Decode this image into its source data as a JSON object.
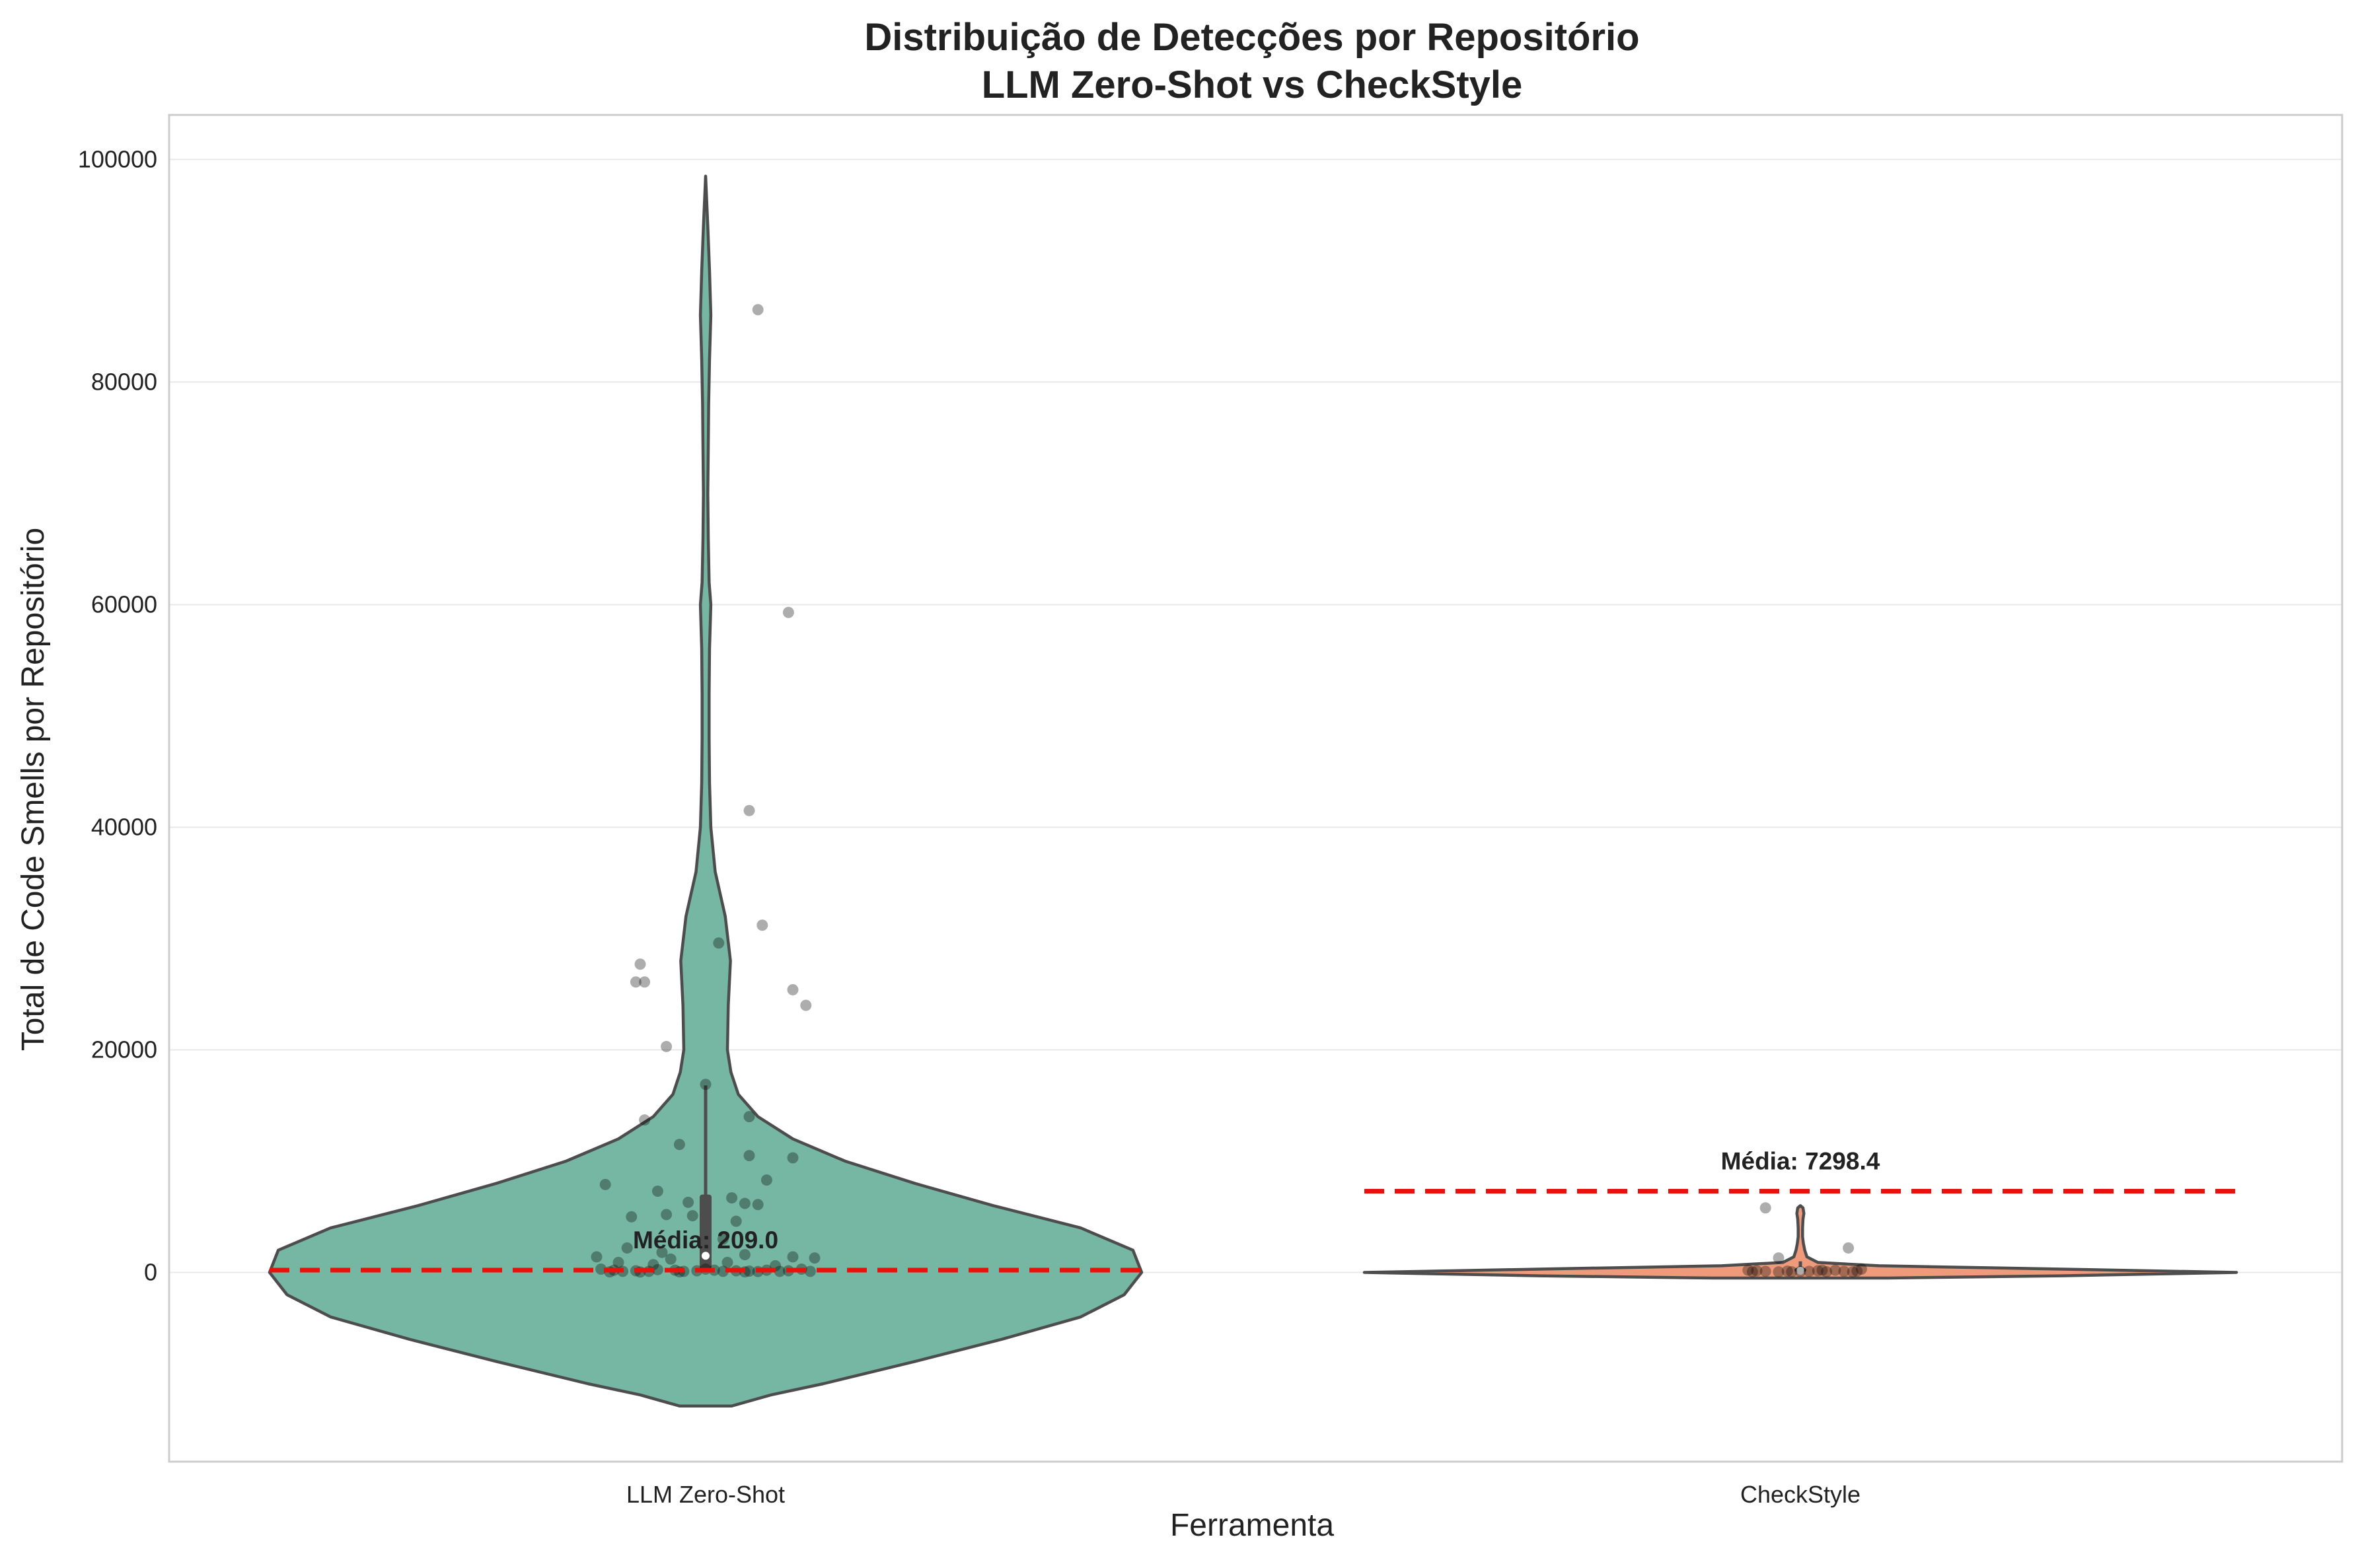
{
  "chart_data": {
    "type": "violin",
    "title_lines": [
      "Distribuição de Detecções por Repositório",
      "LLM Zero-Shot vs CheckStyle"
    ],
    "xlabel": "Ferramenta",
    "ylabel": "Total de Code Smells por Repositório",
    "categories": [
      "LLM Zero-Shot",
      "CheckStyle"
    ],
    "ylim": [
      -17000,
      104000
    ],
    "yticks": [
      0,
      20000,
      40000,
      60000,
      80000,
      100000
    ],
    "grid": true,
    "legend": "none",
    "colors": {
      "LLM Zero-Shot": "#76b7a3",
      "CheckStyle": "#ef9b7b",
      "outline": "#4d4d4d",
      "mean_line": "#e8120c",
      "points": "#000000",
      "grid": "#e8e8e8",
      "frame": "#cccccc"
    },
    "series": [
      {
        "category": "LLM Zero-Shot",
        "mean_label": "Média: 209.0",
        "mean": 209.0,
        "violin_extent": [
          -12000,
          98500
        ],
        "violin_profile": [
          [
            -12000,
            0.06
          ],
          [
            -11000,
            0.15
          ],
          [
            -10000,
            0.27
          ],
          [
            -8000,
            0.48
          ],
          [
            -6000,
            0.68
          ],
          [
            -4000,
            0.86
          ],
          [
            -2000,
            0.96
          ],
          [
            0,
            1.0
          ],
          [
            2000,
            0.98
          ],
          [
            4000,
            0.86
          ],
          [
            6000,
            0.66
          ],
          [
            8000,
            0.48
          ],
          [
            10000,
            0.32
          ],
          [
            12000,
            0.2
          ],
          [
            14000,
            0.12
          ],
          [
            16000,
            0.075
          ],
          [
            18000,
            0.058
          ],
          [
            20000,
            0.05
          ],
          [
            24000,
            0.052
          ],
          [
            28000,
            0.057
          ],
          [
            32000,
            0.045
          ],
          [
            36000,
            0.022
          ],
          [
            40000,
            0.012
          ],
          [
            44000,
            0.009
          ],
          [
            48000,
            0.008
          ],
          [
            52000,
            0.008
          ],
          [
            56000,
            0.009
          ],
          [
            60000,
            0.012
          ],
          [
            62000,
            0.008
          ],
          [
            66000,
            0.006
          ],
          [
            70000,
            0.005
          ],
          [
            74000,
            0.006
          ],
          [
            78000,
            0.007
          ],
          [
            82000,
            0.009
          ],
          [
            86000,
            0.012
          ],
          [
            90000,
            0.009
          ],
          [
            94000,
            0.005
          ],
          [
            98500,
            0.0
          ]
        ],
        "box": {
          "q1": 300,
          "median": 1500,
          "q3": 7000,
          "whisker_high": 16800
        },
        "points": [
          [
            0.12,
            86500
          ],
          [
            0.19,
            59300
          ],
          [
            0.1,
            41500
          ],
          [
            0.13,
            31200
          ],
          [
            0.03,
            29600
          ],
          [
            -0.15,
            27700
          ],
          [
            -0.16,
            26100
          ],
          [
            -0.14,
            26100
          ],
          [
            0.2,
            25400
          ],
          [
            0.23,
            24000
          ],
          [
            -0.09,
            20300
          ],
          [
            0.0,
            16900
          ],
          [
            0.1,
            14000
          ],
          [
            -0.14,
            13700
          ],
          [
            0.1,
            10500
          ],
          [
            0.2,
            10300
          ],
          [
            -0.06,
            11500
          ],
          [
            0.14,
            8300
          ],
          [
            -0.23,
            7900
          ],
          [
            -0.11,
            7300
          ],
          [
            0.06,
            6700
          ],
          [
            0.09,
            6200
          ],
          [
            -0.04,
            6300
          ],
          [
            0.12,
            6100
          ],
          [
            -0.03,
            5100
          ],
          [
            0.07,
            4600
          ],
          [
            -0.17,
            5000
          ],
          [
            -0.09,
            5200
          ],
          [
            0.04,
            3000
          ],
          [
            -0.18,
            2200
          ],
          [
            -0.1,
            1800
          ],
          [
            0.09,
            1600
          ],
          [
            -0.08,
            1200
          ],
          [
            0.2,
            1400
          ],
          [
            0.25,
            1300
          ],
          [
            -0.25,
            1400
          ],
          [
            -0.2,
            900
          ],
          [
            0.05,
            900
          ],
          [
            -0.12,
            700
          ],
          [
            0.16,
            600
          ],
          [
            -0.24,
            300
          ],
          [
            -0.21,
            200
          ],
          [
            -0.19,
            100
          ],
          [
            -0.16,
            150
          ],
          [
            -0.13,
            100
          ],
          [
            -0.11,
            250
          ],
          [
            -0.07,
            200
          ],
          [
            -0.05,
            100
          ],
          [
            -0.02,
            150
          ],
          [
            0.0,
            300
          ],
          [
            0.02,
            200
          ],
          [
            0.04,
            100
          ],
          [
            0.07,
            150
          ],
          [
            0.1,
            120
          ],
          [
            0.12,
            80
          ],
          [
            0.14,
            200
          ],
          [
            0.17,
            100
          ],
          [
            0.19,
            150
          ],
          [
            0.22,
            300
          ],
          [
            -0.22,
            50
          ],
          [
            0.24,
            100
          ],
          [
            -0.06,
            50
          ],
          [
            0.09,
            50
          ],
          [
            -0.15,
            40
          ]
        ]
      },
      {
        "category": "CheckStyle",
        "mean_label": "Média: 7298.4",
        "mean": 7298.4,
        "violin_extent": [
          -500,
          6000
        ],
        "violin_profile": [
          [
            -500,
            0.2
          ],
          [
            -300,
            0.6
          ],
          [
            0,
            1.0
          ],
          [
            300,
            0.6
          ],
          [
            600,
            0.18
          ],
          [
            900,
            0.04
          ],
          [
            1400,
            0.015
          ],
          [
            2000,
            0.01
          ],
          [
            2600,
            0.007
          ],
          [
            3200,
            0.005
          ],
          [
            4000,
            0.005
          ],
          [
            4800,
            0.006
          ],
          [
            5300,
            0.008
          ],
          [
            5800,
            0.006
          ],
          [
            6000,
            0.0
          ]
        ],
        "box": {
          "q1": 50,
          "median": 150,
          "q3": 400,
          "whisker_high": 1000
        },
        "points": [
          [
            -0.08,
            5800
          ],
          [
            0.11,
            2200
          ],
          [
            -0.05,
            1300
          ],
          [
            0.14,
            300
          ],
          [
            -0.12,
            200
          ],
          [
            -0.1,
            150
          ],
          [
            -0.08,
            100
          ],
          [
            -0.05,
            50
          ],
          [
            -0.03,
            120
          ],
          [
            0.0,
            80
          ],
          [
            0.02,
            100
          ],
          [
            0.04,
            150
          ],
          [
            0.06,
            60
          ],
          [
            0.08,
            200
          ],
          [
            0.1,
            100
          ],
          [
            0.12,
            50
          ],
          [
            -0.11,
            60
          ],
          [
            0.05,
            200
          ],
          [
            -0.02,
            60
          ],
          [
            0.13,
            120
          ]
        ]
      }
    ]
  }
}
